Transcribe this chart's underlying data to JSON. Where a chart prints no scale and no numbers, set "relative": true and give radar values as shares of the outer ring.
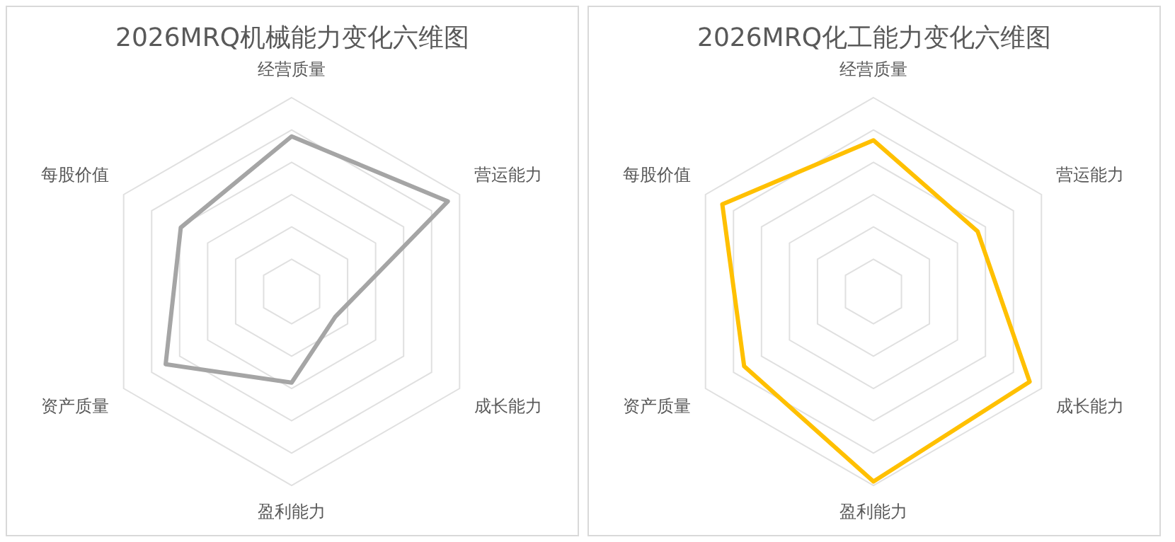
{
  "chart_data": [
    {
      "type": "radar",
      "title": "2026MRQ机械能力变化六维图",
      "categories": [
        "经营质量",
        "营运能力",
        "成长能力",
        "盈利能力",
        "资产质量",
        "每股价值"
      ],
      "relative": true,
      "legend": false,
      "marker": "none",
      "grid": true,
      "series": [
        {
          "color": "#a5a5a5",
          "values": [
            0.8,
            0.93,
            0.26,
            0.47,
            0.75,
            0.66
          ]
        }
      ]
    },
    {
      "type": "radar",
      "title": "2026MRQ化工能力变化六维图",
      "categories": [
        "经营质量",
        "营运能力",
        "成长能力",
        "盈利能力",
        "资产质量",
        "每股价值"
      ],
      "relative": true,
      "legend": false,
      "marker": "none",
      "grid": true,
      "series": [
        {
          "color": "#ffc000",
          "values": [
            0.78,
            0.62,
            0.93,
            0.98,
            0.77,
            0.9
          ]
        }
      ]
    }
  ]
}
